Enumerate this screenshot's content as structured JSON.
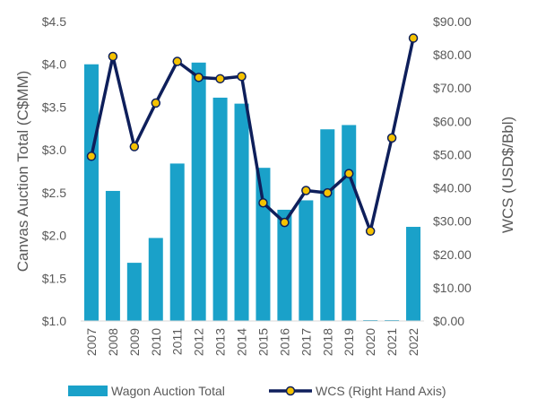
{
  "chart_data": {
    "type": "bar",
    "categories": [
      "2007",
      "2008",
      "2009",
      "2010",
      "2011",
      "2012",
      "2013",
      "2014",
      "2015",
      "2016",
      "2017",
      "2018",
      "2019",
      "2020",
      "2021",
      "2022"
    ],
    "series": [
      {
        "name": "Wagon Auction Total",
        "type": "bar",
        "axis": "left",
        "color": "#1aa1c9",
        "values": [
          4.0,
          2.52,
          1.68,
          1.97,
          2.84,
          4.02,
          3.61,
          3.54,
          2.79,
          2.3,
          2.41,
          3.24,
          3.29,
          1.0,
          1.0,
          2.1
        ]
      },
      {
        "name": "WCS (Right Hand Axis)",
        "type": "line",
        "axis": "right",
        "color": "#0e1f5b",
        "marker_color": "#f5c200",
        "values": [
          49.5,
          79.5,
          52.4,
          65.5,
          78.0,
          73.2,
          72.8,
          73.5,
          35.5,
          29.6,
          39.2,
          38.5,
          44.3,
          27.0,
          55.0,
          85.0
        ]
      }
    ],
    "ylabel_left": "Canvas Auction Total (C$MM)",
    "ylabel_right": "WCS (USD$/Bbl)",
    "xlabel": "",
    "title": "",
    "ylim_left": [
      1.0,
      4.5
    ],
    "ylim_right": [
      0,
      90
    ],
    "y_ticks_left": [
      "$1.0",
      "$1.5",
      "$2.0",
      "$2.5",
      "$3.0",
      "$3.5",
      "$4.0",
      "$4.5"
    ],
    "y_tick_values_left": [
      1.0,
      1.5,
      2.0,
      2.5,
      3.0,
      3.5,
      4.0,
      4.5
    ],
    "y_ticks_right": [
      "$0.00",
      "$10.00",
      "$20.00",
      "$30.00",
      "$40.00",
      "$50.00",
      "$60.00",
      "$70.00",
      "$80.00",
      "$90.00"
    ],
    "y_tick_values_right": [
      0,
      10,
      20,
      30,
      40,
      50,
      60,
      70,
      80,
      90
    ],
    "grid": false,
    "legend_position": "bottom",
    "legend": [
      {
        "label": "Wagon Auction Total",
        "kind": "bar",
        "color": "#1aa1c9"
      },
      {
        "label": "WCS (Right Hand Axis)",
        "kind": "line",
        "color": "#0e1f5b",
        "marker_color": "#f5c200"
      }
    ]
  }
}
